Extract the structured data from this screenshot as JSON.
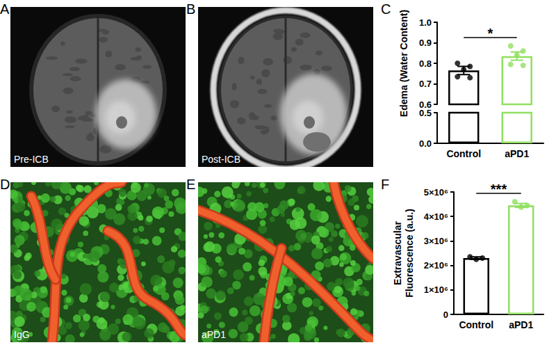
{
  "images": [
    {
      "panel": "A",
      "label": "Pre-ICB"
    },
    {
      "panel": "B",
      "label": "Post-ICB"
    },
    {
      "panel": "D",
      "label": "IgG"
    },
    {
      "panel": "E",
      "label": "aPD1"
    }
  ],
  "chart_data": [
    {
      "panel": "C",
      "type": "bar",
      "ylabel": "Edema (Water Content)",
      "categories": [
        "Control",
        "aPD1"
      ],
      "values": [
        0.765,
        0.835
      ],
      "errors": [
        0.02,
        0.02
      ],
      "points": [
        [
          0.8,
          0.785,
          0.77,
          0.735,
          0.73
        ],
        [
          0.885,
          0.86,
          0.84,
          0.795,
          0.79
        ]
      ],
      "colors": [
        "#000000",
        "#90e060"
      ],
      "ylim": [
        0,
        1
      ],
      "y_break": [
        0.5,
        0.6
      ],
      "yticks": [
        {
          "value": 0,
          "label": "0.0"
        },
        0.5,
        0.6,
        0.7,
        0.8,
        0.9,
        {
          "value": 1,
          "label": "1.0"
        }
      ],
      "grid": false,
      "annotations": [
        {
          "text": "*",
          "between": [
            "Control",
            "aPD1"
          ]
        }
      ]
    },
    {
      "panel": "F",
      "type": "bar",
      "ylabel": "Extravascular\nFluorescence (a.u.)",
      "categories": [
        "Control",
        "aPD1"
      ],
      "values": [
        2300000,
        4450000
      ],
      "errors": [
        50000,
        80000
      ],
      "points": [
        [
          2350000,
          2300000,
          2250000
        ],
        [
          4600000,
          4450000,
          4380000
        ]
      ],
      "colors": [
        "#000000",
        "#90e060"
      ],
      "ylim": [
        0,
        5000000
      ],
      "yticks": [
        0,
        {
          "value": 1000000,
          "label": "1×10⁶"
        },
        {
          "value": 2000000,
          "label": "2×10⁶"
        },
        {
          "value": 3000000,
          "label": "3×10⁶"
        },
        {
          "value": 4000000,
          "label": "4×10⁶"
        },
        {
          "value": 5000000,
          "label": "5×10⁶"
        }
      ],
      "grid": false,
      "annotations": [
        {
          "text": "***",
          "between": [
            "Control",
            "aPD1"
          ]
        }
      ]
    }
  ]
}
